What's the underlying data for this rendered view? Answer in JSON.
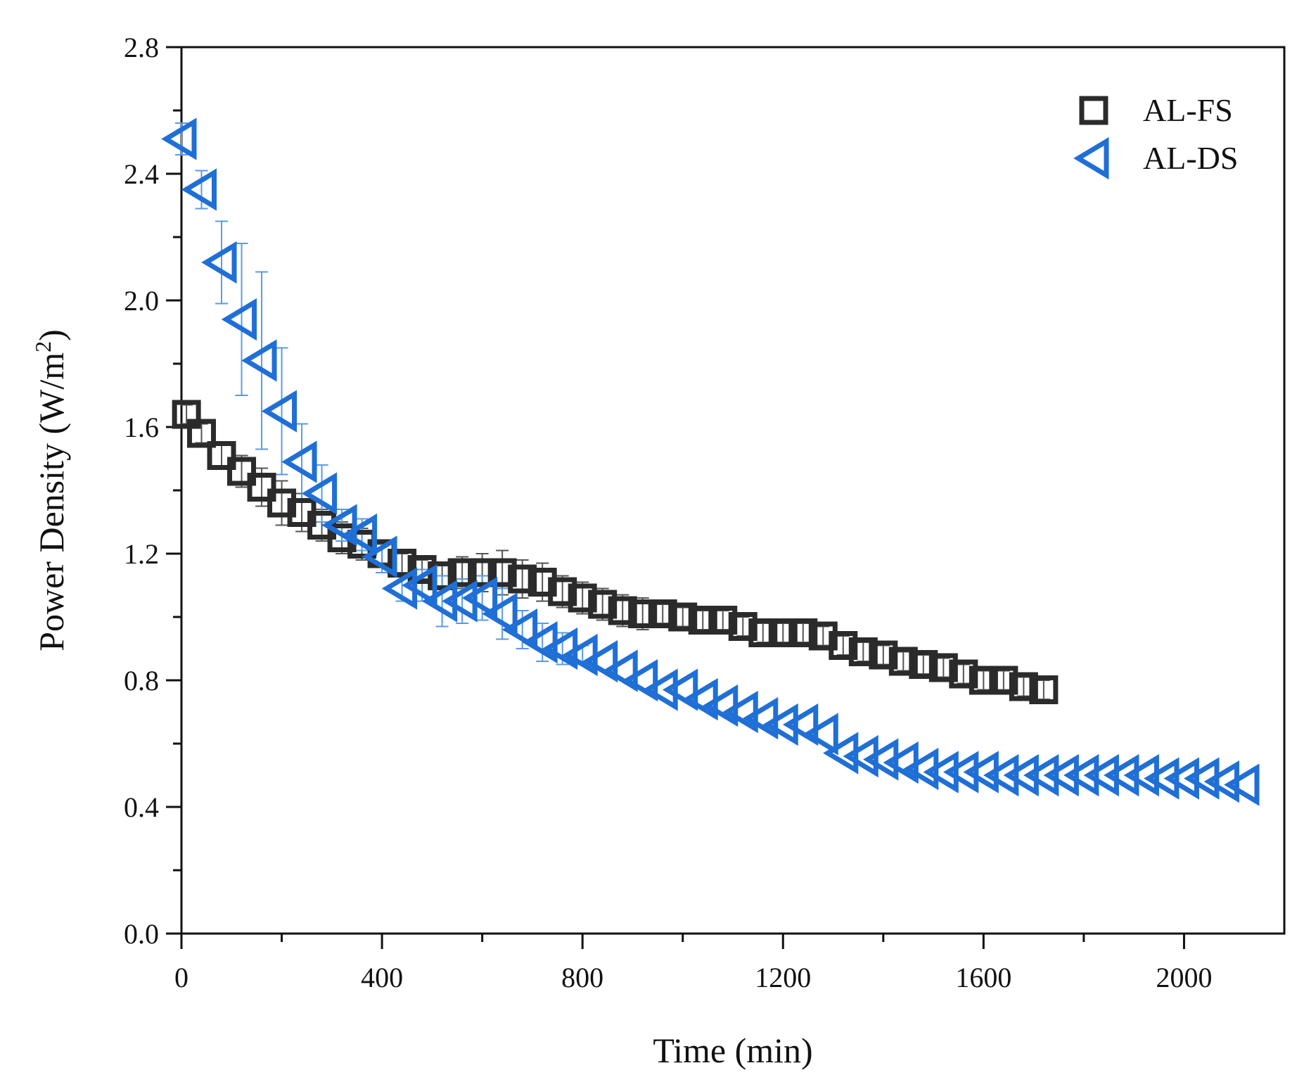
{
  "chart_data": {
    "type": "scatter",
    "xlabel": "Time (min)",
    "ylabel_main": "Power Density (W/m",
    "ylabel_sup": "2",
    "ylabel_close": ")",
    "xlim": [
      0,
      2200
    ],
    "ylim": [
      0,
      2.8
    ],
    "xticks": [
      0,
      400,
      800,
      1200,
      1600,
      2000
    ],
    "xtick_labels": [
      "0",
      "400",
      "800",
      "1200",
      "1600",
      "2000"
    ],
    "yticks": [
      0,
      0.4,
      0.8,
      1.2,
      1.6,
      2.0,
      2.4,
      2.8
    ],
    "ytick_labels": [
      "0.0",
      "0.4",
      "0.8",
      "1.2",
      "1.6",
      "2.0",
      "2.4",
      "2.8"
    ],
    "legend_position": "top-right",
    "series": [
      {
        "name": "AL-FS",
        "marker": "square",
        "color": "#2b2b2b",
        "x": [
          10,
          40,
          80,
          120,
          160,
          200,
          240,
          280,
          320,
          360,
          400,
          440,
          480,
          520,
          560,
          600,
          640,
          680,
          720,
          760,
          800,
          840,
          880,
          920,
          960,
          1000,
          1040,
          1080,
          1120,
          1160,
          1200,
          1240,
          1280,
          1320,
          1360,
          1400,
          1440,
          1480,
          1520,
          1560,
          1600,
          1640,
          1680,
          1720
        ],
        "y": [
          1.64,
          1.58,
          1.51,
          1.46,
          1.41,
          1.36,
          1.33,
          1.29,
          1.25,
          1.23,
          1.2,
          1.17,
          1.15,
          1.13,
          1.14,
          1.14,
          1.14,
          1.12,
          1.11,
          1.08,
          1.06,
          1.04,
          1.02,
          1.01,
          1.01,
          1.0,
          0.99,
          0.99,
          0.97,
          0.95,
          0.95,
          0.95,
          0.94,
          0.91,
          0.89,
          0.88,
          0.86,
          0.85,
          0.84,
          0.82,
          0.8,
          0.8,
          0.78,
          0.77
        ],
        "error": [
          0.03,
          0.03,
          0.04,
          0.05,
          0.06,
          0.07,
          0.06,
          0.05,
          0.05,
          0.05,
          0.03,
          0.03,
          0.03,
          0.04,
          0.05,
          0.06,
          0.07,
          0.06,
          0.06,
          0.05,
          0.05,
          0.05,
          0.05,
          0.05,
          0.03,
          0.03,
          0.03,
          0.03,
          0.03,
          0.03,
          0.03,
          0.03,
          0.03,
          0.03,
          0.03,
          0.03,
          0.03,
          0.03,
          0.03,
          0.03,
          0.03,
          0.03,
          0.03,
          0.03
        ]
      },
      {
        "name": "AL-DS",
        "marker": "triangle-left",
        "color": "#1f6fd6",
        "x": [
          0,
          40,
          80,
          120,
          160,
          200,
          240,
          280,
          320,
          360,
          400,
          440,
          480,
          520,
          560,
          600,
          640,
          680,
          720,
          760,
          800,
          840,
          880,
          920,
          960,
          1000,
          1040,
          1080,
          1120,
          1160,
          1200,
          1240,
          1280,
          1320,
          1360,
          1400,
          1440,
          1480,
          1520,
          1560,
          1600,
          1640,
          1680,
          1720,
          1760,
          1800,
          1840,
          1880,
          1920,
          1960,
          2000,
          2040,
          2080,
          2120
        ],
        "y": [
          2.51,
          2.35,
          2.12,
          1.94,
          1.81,
          1.65,
          1.49,
          1.39,
          1.29,
          1.26,
          1.19,
          1.09,
          1.1,
          1.05,
          1.05,
          1.06,
          1.01,
          0.96,
          0.92,
          0.9,
          0.88,
          0.86,
          0.83,
          0.8,
          0.77,
          0.77,
          0.74,
          0.72,
          0.7,
          0.68,
          0.66,
          0.66,
          0.63,
          0.57,
          0.56,
          0.55,
          0.54,
          0.52,
          0.51,
          0.51,
          0.51,
          0.5,
          0.5,
          0.5,
          0.5,
          0.5,
          0.5,
          0.5,
          0.5,
          0.49,
          0.49,
          0.49,
          0.48,
          0.47
        ],
        "error": [
          0.05,
          0.06,
          0.13,
          0.24,
          0.28,
          0.2,
          0.12,
          0.09,
          0.05,
          0.05,
          0.05,
          0.04,
          0.05,
          0.08,
          0.07,
          0.07,
          0.08,
          0.06,
          0.06,
          0.05,
          0.03,
          0.02,
          0.02,
          0.02,
          0.02,
          0.02,
          0.02,
          0.02,
          0.02,
          0.02,
          0.02,
          0.02,
          0.02,
          0.02,
          0.02,
          0.02,
          0.02,
          0.02,
          0.02,
          0.02,
          0.02,
          0.02,
          0.02,
          0.02,
          0.02,
          0.02,
          0.02,
          0.02,
          0.02,
          0.02,
          0.02,
          0.02,
          0.02,
          0.02
        ]
      }
    ]
  }
}
